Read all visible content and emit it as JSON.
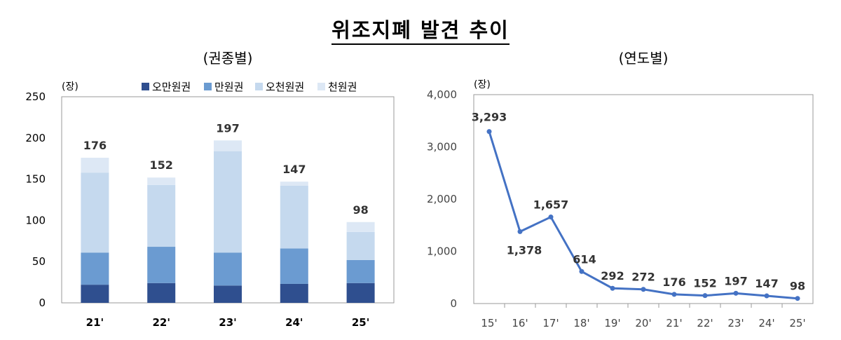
{
  "title": "위조지폐 발견 추이",
  "chart_data": [
    {
      "type": "bar",
      "stacked": true,
      "subtitle": "(권종별)",
      "unit_label": "(장)",
      "categories": [
        "21'",
        "22'",
        "23'",
        "24'",
        "25'"
      ],
      "series": [
        {
          "name": "오만원권",
          "values": [
            22,
            24,
            21,
            23,
            24
          ],
          "color": "#2f4f8f"
        },
        {
          "name": "만원권",
          "values": [
            39,
            44,
            40,
            43,
            28
          ],
          "color": "#6b9bd1"
        },
        {
          "name": "오천원권",
          "values": [
            97,
            75,
            123,
            76,
            34
          ],
          "color": "#c5d9ee"
        },
        {
          "name": "천원권",
          "values": [
            18,
            9,
            13,
            5,
            12
          ],
          "color": "#dde8f5"
        }
      ],
      "totals": [
        "176",
        "152",
        "197",
        "147",
        "98"
      ],
      "yticks": [
        "0",
        "50",
        "100",
        "150",
        "200",
        "250"
      ],
      "ylim": [
        0,
        250
      ],
      "legend_position": "top"
    },
    {
      "type": "line",
      "subtitle": "(연도별)",
      "unit_label": "(장)",
      "x": [
        "15'",
        "16'",
        "17'",
        "18'",
        "19'",
        "20'",
        "21'",
        "22'",
        "23'",
        "24'",
        "25'"
      ],
      "series": [
        {
          "values": [
            3293,
            1378,
            1657,
            614,
            292,
            272,
            176,
            152,
            197,
            147,
            98
          ],
          "color": "#4472c4"
        }
      ],
      "data_labels": [
        "3,293",
        "1,378",
        "1,657",
        "614",
        "292",
        "272",
        "176",
        "152",
        "197",
        "147",
        "98"
      ],
      "yticks": [
        "0",
        "1,000",
        "2,000",
        "3,000",
        "4,000"
      ],
      "ylim": [
        0,
        4000
      ],
      "grid": false
    }
  ]
}
